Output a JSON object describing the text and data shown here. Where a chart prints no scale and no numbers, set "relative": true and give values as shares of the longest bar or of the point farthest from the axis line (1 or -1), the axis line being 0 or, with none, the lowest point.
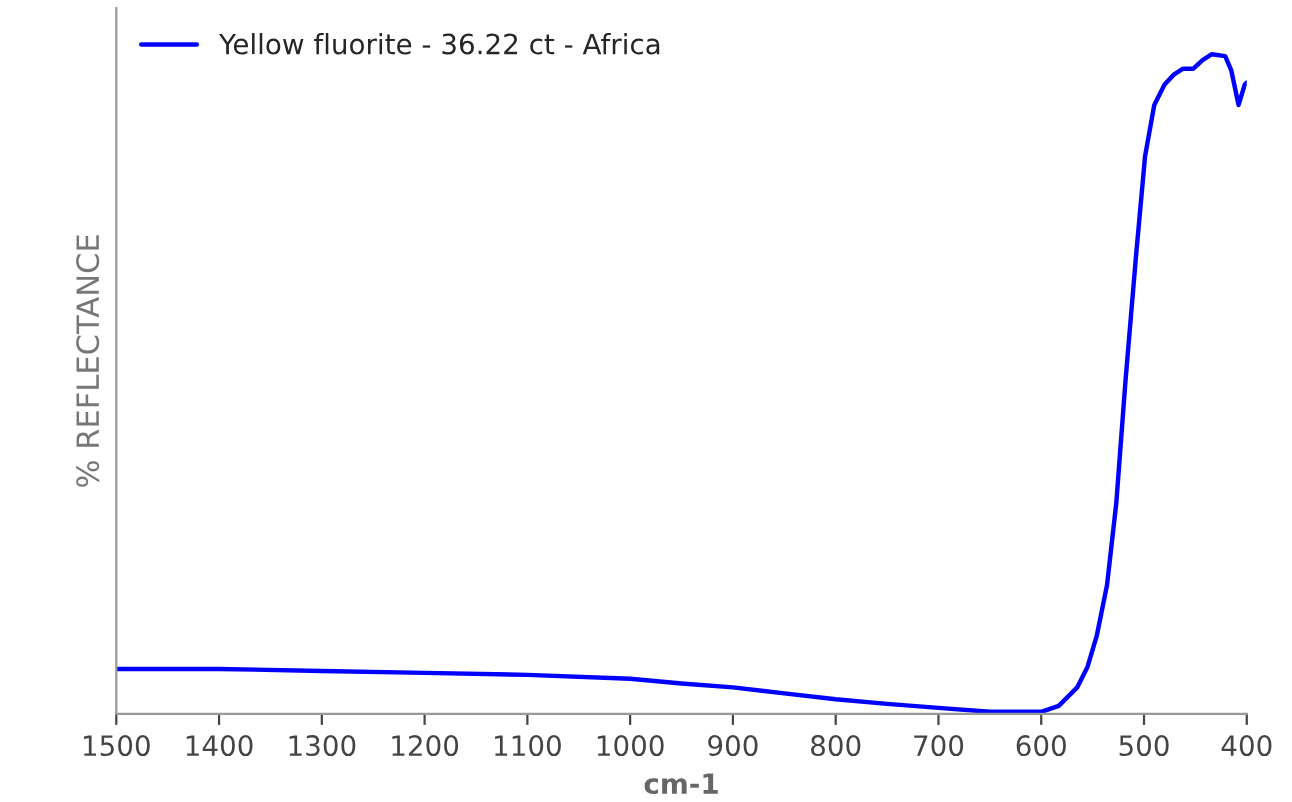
{
  "chart_data": {
    "type": "line",
    "xlabel": "cm-1",
    "ylabel": "% REFLECTANCE",
    "relative": true,
    "xlim": [
      1500,
      400
    ],
    "xticks": [
      1500,
      1400,
      1300,
      1200,
      1100,
      1000,
      900,
      800,
      700,
      600,
      500,
      400
    ],
    "tick_labels": "x",
    "legend": "top left",
    "grid": false,
    "series": [
      {
        "name": "Yellow fluorite - 36.22 ct - Africa",
        "color": "#0000ff",
        "x": [
          1500,
          1400,
          1300,
          1200,
          1100,
          1000,
          950,
          900,
          850,
          800,
          750,
          700,
          650,
          620,
          600,
          583,
          565,
          555,
          546,
          536,
          527,
          518,
          508,
          499,
          490,
          480,
          471,
          462,
          452,
          443,
          434,
          421,
          415,
          408,
          402,
          400
        ],
        "values": [
          0.068,
          0.068,
          0.065,
          0.062,
          0.059,
          0.053,
          0.046,
          0.04,
          0.031,
          0.022,
          0.015,
          0.009,
          0.003,
          0.003,
          0.003,
          0.012,
          0.04,
          0.071,
          0.118,
          0.195,
          0.319,
          0.505,
          0.69,
          0.845,
          0.923,
          0.954,
          0.969,
          0.978,
          0.978,
          0.991,
          1.0,
          0.997,
          0.975,
          0.923,
          0.954,
          0.957
        ]
      }
    ]
  }
}
